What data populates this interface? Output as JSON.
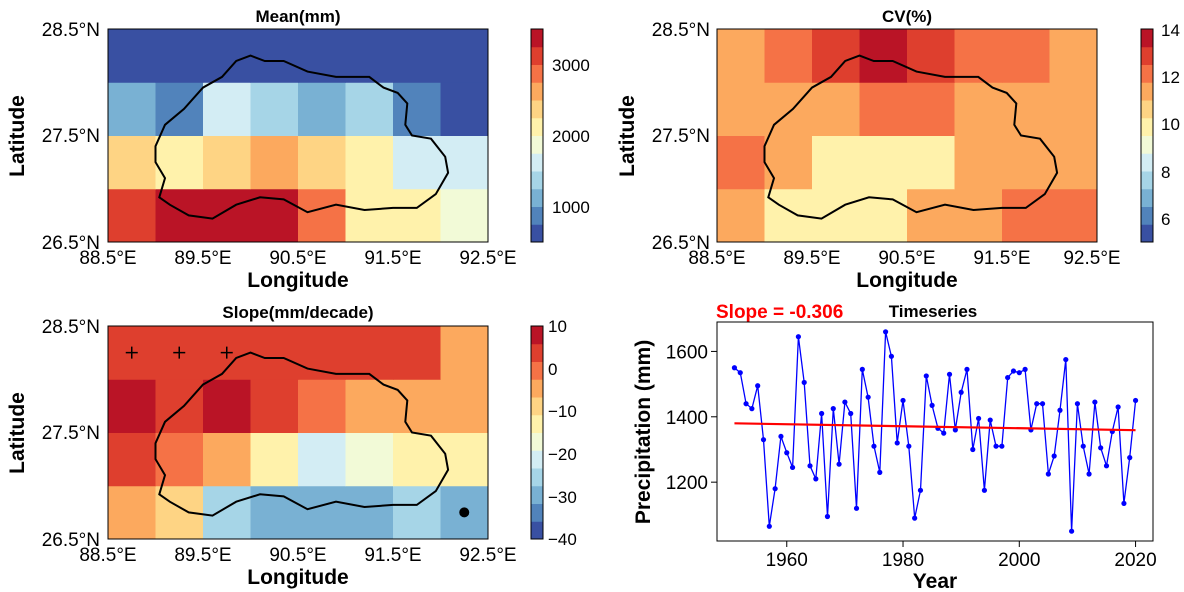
{
  "chart_data": [
    {
      "type": "heatmap",
      "title": "Mean(mm)",
      "xlabel": "Longitude",
      "ylabel": "Latitude",
      "xlim": [
        88.5,
        92.5
      ],
      "ylim": [
        26.5,
        28.5
      ],
      "x_ticks": [
        "88.5°E",
        "89.5°E",
        "90.5°E",
        "91.5°E",
        "92.5°E"
      ],
      "y_ticks": [
        "26.5°N",
        "27.5°N",
        "28.5°N"
      ],
      "grid_lon_edges": [
        88.5,
        89.0,
        89.5,
        90.0,
        90.5,
        91.0,
        91.5,
        92.0,
        92.5
      ],
      "grid_lat_edges": [
        26.5,
        27.0,
        27.5,
        28.0,
        28.5
      ],
      "values": [
        [
          3000,
          3400,
          3400,
          3400,
          2900,
          2200,
          2000,
          1800
        ],
        [
          2300,
          2000,
          2400,
          2600,
          2300,
          2200,
          1700,
          1500
        ],
        [
          1000,
          900,
          1500,
          1300,
          1100,
          1400,
          900,
          600
        ],
        [
          600,
          600,
          600,
          600,
          600,
          600,
          600,
          600
        ]
      ],
      "colorbar": {
        "min": 500,
        "max": 3500,
        "ticks": [
          "1000",
          "2000",
          "3000"
        ],
        "tick_values": [
          1000,
          2000,
          3000
        ]
      }
    },
    {
      "type": "heatmap",
      "title": "CV(%)",
      "xlabel": "Longitude",
      "ylabel": "Latitude",
      "xlim": [
        88.5,
        92.5
      ],
      "ylim": [
        26.5,
        28.5
      ],
      "x_ticks": [
        "88.5°E",
        "89.5°E",
        "90.5°E",
        "91.5°E",
        "92.5°E"
      ],
      "y_ticks": [
        "26.5°N",
        "27.5°N",
        "28.5°N"
      ],
      "grid_lon_edges": [
        88.5,
        89.0,
        89.5,
        90.0,
        90.5,
        91.0,
        91.5,
        92.0,
        92.5
      ],
      "grid_lat_edges": [
        26.5,
        27.0,
        27.5,
        28.0,
        28.5
      ],
      "values": [
        [
          11,
          10,
          10,
          10,
          11,
          11,
          12,
          12
        ],
        [
          12,
          11,
          10,
          10,
          10,
          11,
          11,
          11
        ],
        [
          11,
          11,
          11,
          12,
          12,
          11,
          11,
          11
        ],
        [
          11,
          12,
          13,
          14,
          13,
          12,
          12,
          11
        ]
      ],
      "colorbar": {
        "min": 5,
        "max": 14,
        "ticks": [
          "6",
          "8",
          "10",
          "12",
          "14"
        ],
        "tick_values": [
          6,
          8,
          10,
          12,
          14
        ]
      }
    },
    {
      "type": "heatmap",
      "title": "Slope(mm/decade)",
      "xlabel": "Longitude",
      "ylabel": "Latitude",
      "xlim": [
        88.5,
        92.5
      ],
      "ylim": [
        26.5,
        28.5
      ],
      "x_ticks": [
        "88.5°E",
        "89.5°E",
        "90.5°E",
        "91.5°E",
        "92.5°E"
      ],
      "y_ticks": [
        "26.5°N",
        "27.5°N",
        "28.5°N"
      ],
      "grid_lon_edges": [
        88.5,
        89.0,
        89.5,
        90.0,
        90.5,
        91.0,
        91.5,
        92.0,
        92.5
      ],
      "grid_lat_edges": [
        26.5,
        27.0,
        27.5,
        28.0,
        28.5
      ],
      "values": [
        [
          -5,
          -10,
          -24,
          -30,
          -30,
          -30,
          -26,
          -30
        ],
        [
          3,
          0,
          -5,
          -12,
          -20,
          -18,
          -14,
          -12
        ],
        [
          8,
          5,
          9,
          3,
          0,
          -5,
          -5,
          -5
        ],
        [
          3,
          3,
          5,
          3,
          3,
          3,
          3,
          -3
        ]
      ],
      "significance_plus": [
        [
          88.75,
          28.25
        ],
        [
          89.25,
          28.25
        ],
        [
          89.75,
          28.25
        ]
      ],
      "significance_dot": [
        [
          92.25,
          26.75
        ]
      ],
      "colorbar": {
        "min": -40,
        "max": 10,
        "ticks": [
          "10",
          "0",
          "−10",
          "−20",
          "−30",
          "−40"
        ],
        "tick_values": [
          10,
          0,
          -10,
          -20,
          -30,
          -40
        ]
      }
    },
    {
      "type": "line",
      "title": "Timeseries",
      "annotation": "Slope = -0.306",
      "xlabel": "Year",
      "ylabel": "Precipitation (mm)",
      "xlim": [
        1948,
        2023
      ],
      "ylim": [
        1020,
        1690
      ],
      "x_ticks": [
        "1960",
        "1980",
        "2000",
        "2020"
      ],
      "x_tick_values": [
        1960,
        1980,
        2000,
        2020
      ],
      "y_ticks": [
        "1200",
        "1400",
        "1600"
      ],
      "y_tick_values": [
        1200,
        1400,
        1600
      ],
      "series": [
        {
          "x": [
            1951,
            1952,
            1953,
            1954,
            1955,
            1956,
            1957,
            1958,
            1959,
            1960,
            1961,
            1962,
            1963,
            1964,
            1965,
            1966,
            1967,
            1968,
            1969,
            1970,
            1971,
            1972,
            1973,
            1974,
            1975,
            1976,
            1977,
            1978,
            1979,
            1980,
            1981,
            1982,
            1983,
            1984,
            1985,
            1986,
            1987,
            1988,
            1989,
            1990,
            1991,
            1992,
            1993,
            1994,
            1995,
            1996,
            1997,
            1998,
            1999,
            2000,
            2001,
            2002,
            2003,
            2004,
            2005,
            2006,
            2007,
            2008,
            2009,
            2010,
            2011,
            2012,
            2013,
            2014,
            2015,
            2016,
            2017,
            2018,
            2019,
            2020
          ],
          "y": [
            1550,
            1535,
            1440,
            1425,
            1495,
            1330,
            1065,
            1180,
            1340,
            1290,
            1245,
            1645,
            1505,
            1250,
            1210,
            1410,
            1095,
            1425,
            1255,
            1445,
            1410,
            1120,
            1545,
            1460,
            1310,
            1230,
            1660,
            1585,
            1320,
            1450,
            1310,
            1090,
            1175,
            1525,
            1435,
            1365,
            1350,
            1530,
            1360,
            1475,
            1545,
            1300,
            1395,
            1175,
            1390,
            1310,
            1310,
            1520,
            1540,
            1535,
            1545,
            1360,
            1440,
            1440,
            1225,
            1280,
            1420,
            1575,
            1050,
            1440,
            1310,
            1225,
            1445,
            1305,
            1250,
            1355,
            1430,
            1135,
            1275,
            1450
          ],
          "color": "#0000ff"
        },
        {
          "x": [
            1951,
            2020
          ],
          "y": [
            1380,
            1359
          ],
          "color": "#ff0000"
        }
      ]
    }
  ],
  "colors": {
    "line": "#0000ff",
    "trend": "#ff0000"
  }
}
